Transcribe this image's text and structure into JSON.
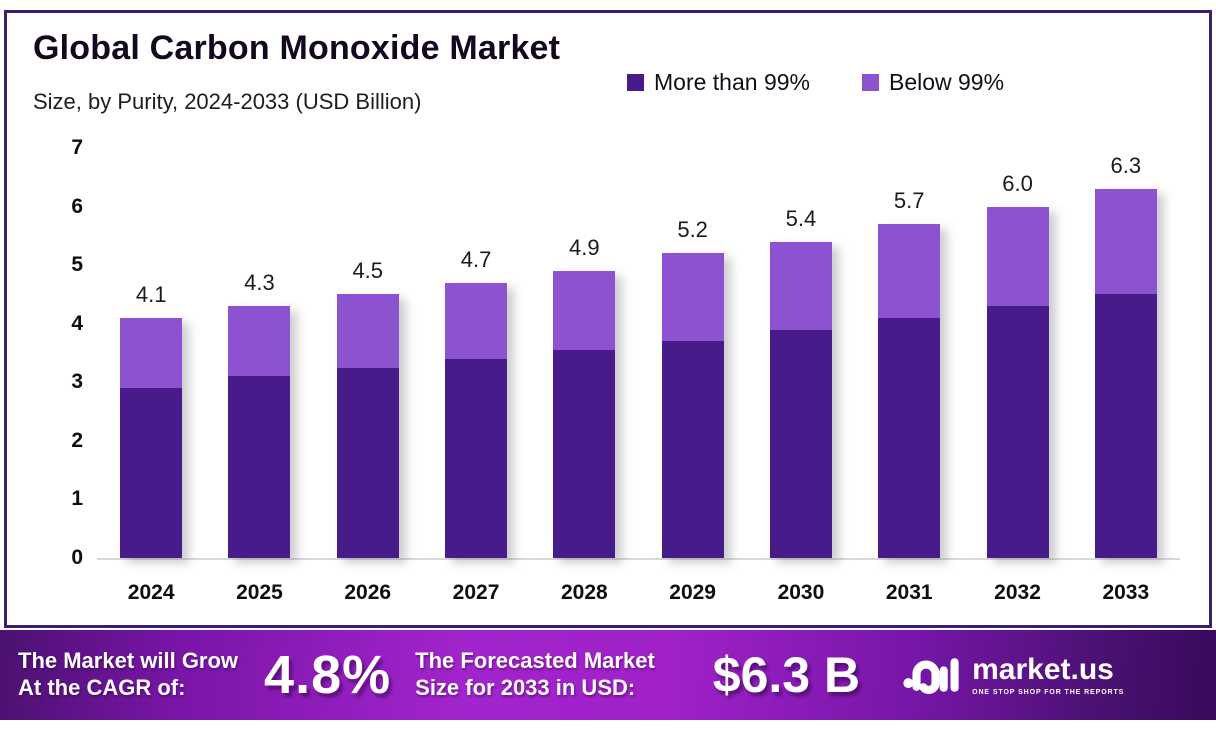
{
  "header": {
    "title": "Global Carbon Monoxide Market",
    "subtitle": "Size, by Purity, 2024-2033 (USD Billion)"
  },
  "legend": {
    "items": [
      {
        "label": "More than 99%",
        "color": "#471C8A"
      },
      {
        "label": "Below 99%",
        "color": "#8C52CF"
      }
    ]
  },
  "chart_data": {
    "type": "bar",
    "stacked": true,
    "title": "Global Carbon Monoxide Market",
    "subtitle": "Size, by Purity, 2024-2033 (USD Billion)",
    "unit": "USD Billion",
    "categories": [
      "2024",
      "2025",
      "2026",
      "2027",
      "2028",
      "2029",
      "2030",
      "2031",
      "2032",
      "2033"
    ],
    "series": [
      {
        "name": "More than 99%",
        "color": "#471C8A",
        "values": [
          2.9,
          3.1,
          3.25,
          3.4,
          3.55,
          3.7,
          3.9,
          4.1,
          4.3,
          4.5
        ]
      },
      {
        "name": "Below 99%",
        "color": "#8C52CF",
        "values": [
          1.2,
          1.2,
          1.25,
          1.3,
          1.35,
          1.5,
          1.5,
          1.6,
          1.7,
          1.8
        ]
      }
    ],
    "totals": [
      4.1,
      4.3,
      4.5,
      4.7,
      4.9,
      5.2,
      5.4,
      5.7,
      6.0,
      6.3
    ],
    "total_labels": [
      "4.1",
      "4.3",
      "4.5",
      "4.7",
      "4.9",
      "5.2",
      "5.4",
      "5.7",
      "6.0",
      "6.3"
    ],
    "ylim": [
      0,
      7
    ],
    "yticks": [
      0,
      1,
      2,
      3,
      4,
      5,
      6,
      7
    ],
    "grid": false,
    "legend_position": "top-right"
  },
  "banner": {
    "cagr": {
      "label_line1": "The Market will Grow",
      "label_line2": "At the CAGR of:",
      "value": "4.8%"
    },
    "forecast": {
      "label_line1": "The Forecasted Market",
      "label_line2": "Size for 2033 in USD:",
      "value": "$6.3 B"
    },
    "brand": {
      "name": "market.us",
      "tagline": "ONE STOP SHOP FOR THE REPORTS"
    },
    "colors": {
      "gradient_left": "#4B1170",
      "gradient_center": "#A224CC",
      "gradient_right": "#38095C"
    }
  }
}
